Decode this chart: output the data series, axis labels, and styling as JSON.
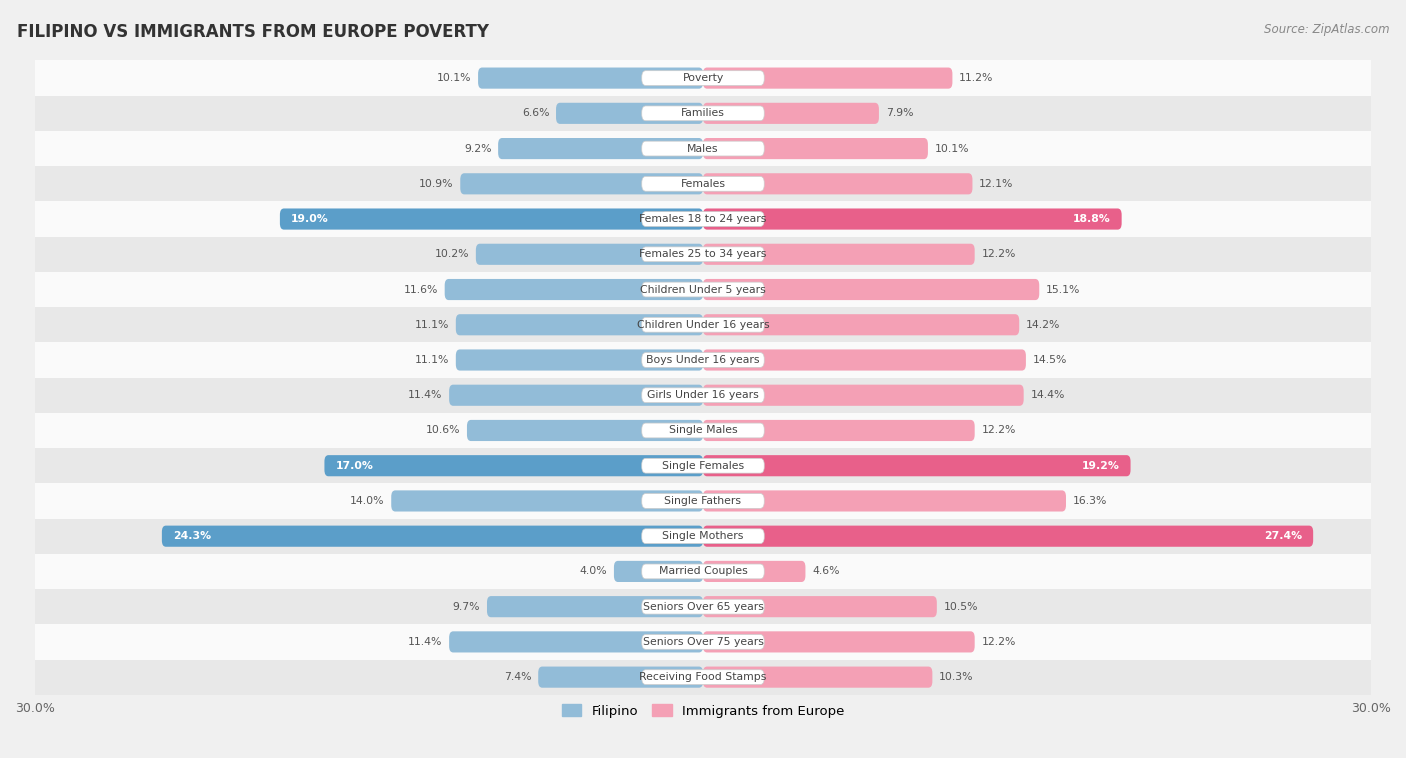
{
  "title": "FILIPINO VS IMMIGRANTS FROM EUROPE POVERTY",
  "source": "Source: ZipAtlas.com",
  "categories": [
    "Poverty",
    "Families",
    "Males",
    "Females",
    "Females 18 to 24 years",
    "Females 25 to 34 years",
    "Children Under 5 years",
    "Children Under 16 years",
    "Boys Under 16 years",
    "Girls Under 16 years",
    "Single Males",
    "Single Females",
    "Single Fathers",
    "Single Mothers",
    "Married Couples",
    "Seniors Over 65 years",
    "Seniors Over 75 years",
    "Receiving Food Stamps"
  ],
  "filipino": [
    10.1,
    6.6,
    9.2,
    10.9,
    19.0,
    10.2,
    11.6,
    11.1,
    11.1,
    11.4,
    10.6,
    17.0,
    14.0,
    24.3,
    4.0,
    9.7,
    11.4,
    7.4
  ],
  "europe": [
    11.2,
    7.9,
    10.1,
    12.1,
    18.8,
    12.2,
    15.1,
    14.2,
    14.5,
    14.4,
    12.2,
    19.2,
    16.3,
    27.4,
    4.6,
    10.5,
    12.2,
    10.3
  ],
  "filipino_color": "#92bcd8",
  "europe_color": "#f4a0b5",
  "filipino_highlight_color": "#5b9ec9",
  "europe_highlight_color": "#e8608a",
  "fil_highlight_thresh": 17.0,
  "eur_highlight_thresh": 18.8,
  "axis_limit": 30.0,
  "background_color": "#f0f0f0",
  "row_color_even": "#fafafa",
  "row_color_odd": "#e8e8e8",
  "legend_filipino": "Filipino",
  "legend_europe": "Immigrants from Europe"
}
